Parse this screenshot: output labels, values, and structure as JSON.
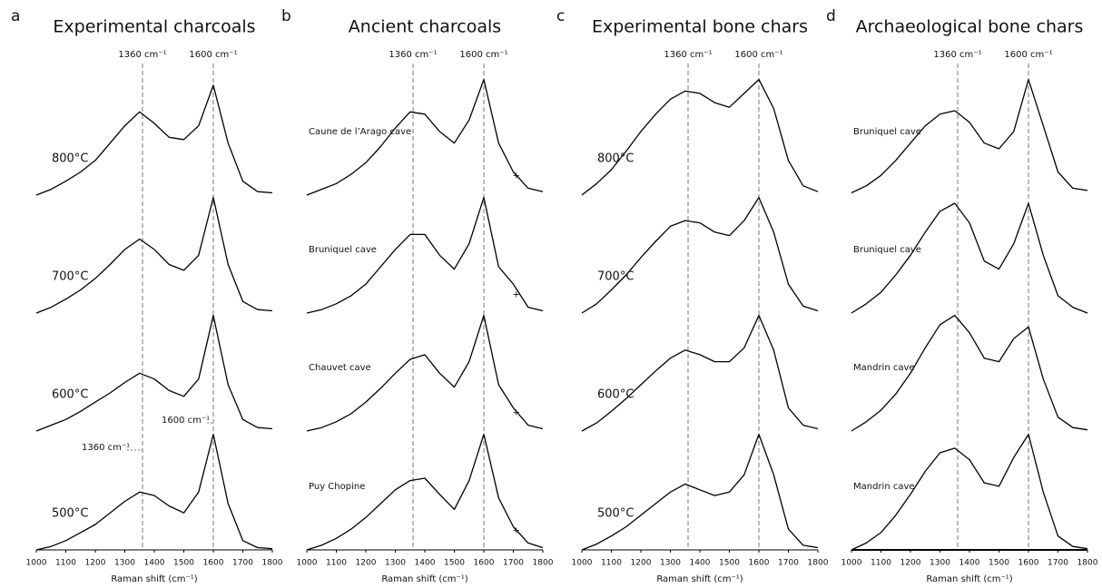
{
  "chart_data": [
    {
      "type": "line",
      "panel": "a",
      "title": "Experimental charcoals",
      "x_label": "Raman shift (cm⁻¹)",
      "x": [
        1000,
        1050,
        1100,
        1150,
        1200,
        1250,
        1300,
        1350,
        1400,
        1450,
        1500,
        1550,
        1600,
        1650,
        1700,
        1750,
        1800
      ],
      "xlim": [
        1000,
        1800
      ],
      "xticks": [
        1000,
        1100,
        1200,
        1300,
        1400,
        1500,
        1600,
        1700,
        1800
      ],
      "ref_lines": [
        {
          "value": 1360,
          "label": "1360 cm⁻¹"
        },
        {
          "value": 1600,
          "label": "1600 cm⁻¹"
        }
      ],
      "inset_labels": [
        "1600 cm⁻¹",
        "1360 cm⁻¹"
      ],
      "series": [
        {
          "name": "800°C",
          "color": "#000000",
          "values": [
            0,
            0.05,
            0.12,
            0.2,
            0.3,
            0.45,
            0.6,
            0.72,
            0.62,
            0.5,
            0.48,
            0.6,
            0.95,
            0.45,
            0.12,
            0.03,
            0.02
          ]
        },
        {
          "name": "700°C",
          "color": "#000000",
          "values": [
            0,
            0.05,
            0.12,
            0.2,
            0.3,
            0.42,
            0.55,
            0.64,
            0.55,
            0.42,
            0.37,
            0.5,
            1.0,
            0.42,
            0.1,
            0.03,
            0.02
          ]
        },
        {
          "name": "600°C",
          "color": "#000000",
          "values": [
            0,
            0.05,
            0.1,
            0.17,
            0.25,
            0.33,
            0.42,
            0.5,
            0.45,
            0.35,
            0.3,
            0.45,
            1.0,
            0.4,
            0.1,
            0.03,
            0.02
          ]
        },
        {
          "name": "500°C",
          "color": "#000000",
          "values": [
            0,
            0.03,
            0.08,
            0.15,
            0.22,
            0.32,
            0.42,
            0.5,
            0.47,
            0.38,
            0.32,
            0.5,
            1.0,
            0.4,
            0.08,
            0.02,
            0.01
          ]
        }
      ]
    },
    {
      "type": "line",
      "panel": "b",
      "title": "Ancient charcoals",
      "x_label": "Raman shift (cm⁻¹)",
      "x": [
        1000,
        1050,
        1100,
        1150,
        1200,
        1250,
        1300,
        1350,
        1400,
        1450,
        1500,
        1550,
        1600,
        1650,
        1700,
        1750,
        1800
      ],
      "xlim": [
        1000,
        1800
      ],
      "xticks": [
        1000,
        1100,
        1200,
        1300,
        1400,
        1500,
        1600,
        1700,
        1800
      ],
      "ref_lines": [
        {
          "value": 1360,
          "label": "1360 cm⁻¹"
        },
        {
          "value": 1600,
          "label": "1600 cm⁻¹"
        }
      ],
      "annotation": {
        "x": 1710,
        "text": "+"
      },
      "series": [
        {
          "name": "Caune de l’Arago cave",
          "color": "#000000",
          "values": [
            0,
            0.05,
            0.1,
            0.18,
            0.28,
            0.42,
            0.58,
            0.72,
            0.7,
            0.55,
            0.45,
            0.65,
            1.0,
            0.45,
            0.2,
            0.06,
            0.03
          ]
        },
        {
          "name": "Bruniquel cave",
          "color": "#000000",
          "values": [
            0,
            0.03,
            0.08,
            0.15,
            0.25,
            0.4,
            0.55,
            0.68,
            0.68,
            0.5,
            0.38,
            0.6,
            1.0,
            0.4,
            0.25,
            0.05,
            0.02
          ]
        },
        {
          "name": "Chauvet cave",
          "color": "#000000",
          "values": [
            0,
            0.03,
            0.08,
            0.15,
            0.25,
            0.37,
            0.5,
            0.62,
            0.66,
            0.5,
            0.38,
            0.6,
            1.0,
            0.4,
            0.2,
            0.05,
            0.02
          ]
        },
        {
          "name": "Puy Chopine",
          "color": "#000000",
          "values": [
            0,
            0.04,
            0.1,
            0.18,
            0.28,
            0.4,
            0.52,
            0.6,
            0.62,
            0.48,
            0.35,
            0.6,
            1.0,
            0.45,
            0.2,
            0.06,
            0.02
          ]
        }
      ]
    },
    {
      "type": "line",
      "panel": "c",
      "title": "Experimental bone chars",
      "x_label": "Raman shift (cm⁻¹)",
      "x": [
        1000,
        1050,
        1100,
        1150,
        1200,
        1250,
        1300,
        1350,
        1400,
        1450,
        1500,
        1550,
        1600,
        1650,
        1700,
        1750,
        1800
      ],
      "xlim": [
        1000,
        1800
      ],
      "xticks": [
        1000,
        1100,
        1200,
        1300,
        1400,
        1500,
        1600,
        1700,
        1800
      ],
      "ref_lines": [
        {
          "value": 1360,
          "label": "1360 cm⁻¹"
        },
        {
          "value": 1600,
          "label": "1600 cm⁻¹"
        }
      ],
      "series": [
        {
          "name": "800°C",
          "color": "#000000",
          "values": [
            0,
            0.1,
            0.22,
            0.38,
            0.55,
            0.7,
            0.83,
            0.9,
            0.88,
            0.8,
            0.76,
            0.88,
            1.0,
            0.75,
            0.3,
            0.08,
            0.03
          ]
        },
        {
          "name": "700°C",
          "color": "#000000",
          "values": [
            0,
            0.08,
            0.2,
            0.33,
            0.48,
            0.62,
            0.75,
            0.8,
            0.78,
            0.7,
            0.67,
            0.8,
            1.0,
            0.7,
            0.25,
            0.06,
            0.02
          ]
        },
        {
          "name": "600°C",
          "color": "#000000",
          "values": [
            0,
            0.07,
            0.17,
            0.28,
            0.4,
            0.52,
            0.63,
            0.7,
            0.66,
            0.6,
            0.6,
            0.72,
            1.0,
            0.7,
            0.2,
            0.05,
            0.02
          ]
        },
        {
          "name": "500°C",
          "color": "#000000",
          "values": [
            0,
            0.05,
            0.12,
            0.2,
            0.3,
            0.4,
            0.5,
            0.57,
            0.52,
            0.47,
            0.5,
            0.65,
            1.0,
            0.65,
            0.18,
            0.04,
            0.02
          ]
        }
      ]
    },
    {
      "type": "line",
      "panel": "d",
      "title": "Archaeological bone chars",
      "x_label": "Raman shift (cm⁻¹)",
      "x": [
        1000,
        1050,
        1100,
        1150,
        1200,
        1250,
        1300,
        1350,
        1400,
        1450,
        1500,
        1550,
        1600,
        1650,
        1700,
        1750,
        1800
      ],
      "xlim": [
        1000,
        1800
      ],
      "xticks": [
        1000,
        1100,
        1200,
        1300,
        1400,
        1500,
        1600,
        1700,
        1800
      ],
      "ref_lines": [
        {
          "value": 1360,
          "label": "1360 cm⁻¹"
        },
        {
          "value": 1600,
          "label": "1600 cm⁻¹"
        }
      ],
      "series": [
        {
          "name": "Bruniquel cave",
          "color": "#000000",
          "values": [
            0.02,
            0.08,
            0.17,
            0.3,
            0.45,
            0.6,
            0.7,
            0.73,
            0.63,
            0.45,
            0.4,
            0.55,
            1.0,
            0.6,
            0.2,
            0.06,
            0.04
          ]
        },
        {
          "name": "Bruniquel cave",
          "color": "#000000",
          "values": [
            0,
            0.08,
            0.18,
            0.33,
            0.5,
            0.7,
            0.88,
            0.95,
            0.78,
            0.45,
            0.38,
            0.6,
            0.95,
            0.5,
            0.15,
            0.05,
            0
          ]
        },
        {
          "name": "Mandrin cave",
          "color": "#000000",
          "values": [
            0,
            0.08,
            0.18,
            0.32,
            0.5,
            0.72,
            0.92,
            1.0,
            0.85,
            0.63,
            0.6,
            0.8,
            0.9,
            0.45,
            0.12,
            0.03,
            0.01
          ]
        },
        {
          "name": "Mandrin cave",
          "color": "#000000",
          "values": [
            0,
            0.06,
            0.15,
            0.3,
            0.48,
            0.68,
            0.84,
            0.88,
            0.78,
            0.58,
            0.55,
            0.8,
            1.0,
            0.5,
            0.12,
            0.03,
            0.01
          ]
        }
      ]
    }
  ]
}
